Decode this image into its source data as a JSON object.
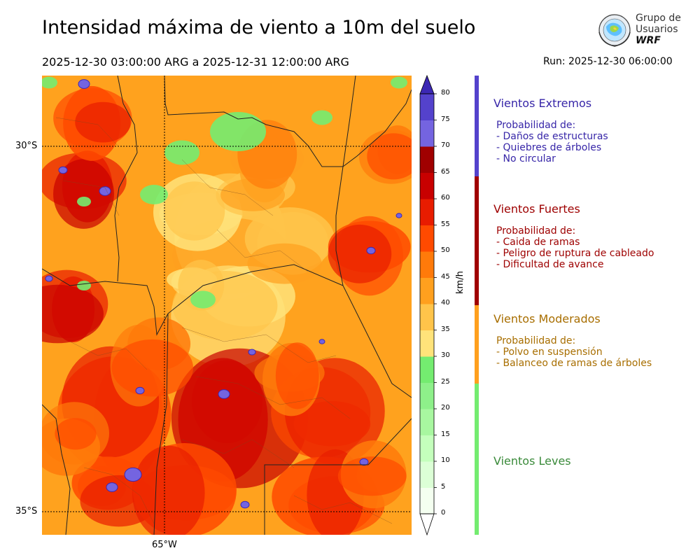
{
  "header": {
    "title": "Intensidad máxima de viento a 10m del suelo",
    "period": "2025-12-30 03:00:00 ARG  a  2025-12-31 12:00:00 ARG",
    "run": "Run: 2025-12-30 06:00:00"
  },
  "logo": {
    "line1": "Grupo de",
    "line2": "Usuarios",
    "line3": "WRF"
  },
  "map": {
    "lat_labels": [
      "30°S",
      "35°S"
    ],
    "lon_labels": [
      "65°W"
    ],
    "gridlines": "dotted"
  },
  "colorbar": {
    "unit": "km/h",
    "ticks": [
      "0",
      "5",
      "10",
      "15",
      "20",
      "25",
      "30",
      "35",
      "40",
      "45",
      "50",
      "55",
      "60",
      "65",
      "70",
      "75",
      "80"
    ],
    "colors": [
      "#f4fff0",
      "#dcffd6",
      "#c4ffbc",
      "#a8f7a0",
      "#8ef08a",
      "#74ec70",
      "#ffe37a",
      "#ffc44a",
      "#ffa01e",
      "#ff7a0a",
      "#ff4a00",
      "#e81c00",
      "#c80000",
      "#a00000",
      "#7464e0",
      "#5442cc",
      "#3c28b4"
    ]
  },
  "categories": [
    {
      "name": "Vientos Extremos",
      "color": "#3726a8",
      "desc_title": "Probabilidad de:",
      "items": [
        "- Daños de estructuras",
        "- Quiebres de árboles",
        "- No circular"
      ]
    },
    {
      "name": "Vientos Fuertes",
      "color": "#9e0000",
      "desc_title": "Probabilidad de:",
      "items": [
        "- Caida de ramas",
        "- Peligro de ruptura de cableado",
        "- Dificultad de avance"
      ]
    },
    {
      "name": "Vientos Moderados",
      "color": "#a86e00",
      "desc_title": "Probabilidad de:",
      "items": [
        "- Polvo en suspensión",
        "- Balanceo de ramas de árboles"
      ]
    },
    {
      "name": "Vientos Leves",
      "color": "#3a8a3a"
    }
  ]
}
